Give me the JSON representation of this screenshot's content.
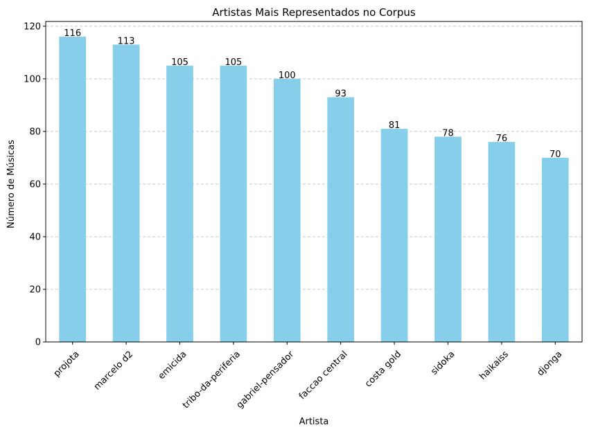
{
  "chart_data": {
    "type": "bar",
    "title": "Artistas Mais Representados no Corpus",
    "xlabel": "Artista",
    "ylabel": "Número de Músicas",
    "categories": [
      "projota",
      "marcelo d2",
      "emicida",
      "tribo-da-periferia",
      "gabriel-pensador",
      "faccao central",
      "costa gold",
      "sidoka",
      "haikaiss",
      "djonga"
    ],
    "values": [
      116,
      113,
      105,
      105,
      100,
      93,
      81,
      78,
      76,
      70
    ],
    "data_labels": [
      "116",
      "113",
      "105",
      "105",
      "100",
      "93",
      "81",
      "78",
      "76",
      "70"
    ],
    "ylim": [
      0,
      121.8
    ],
    "yticks": [
      0,
      20,
      40,
      60,
      80,
      100,
      120
    ],
    "ytick_labels": [
      "0",
      "20",
      "40",
      "60",
      "80",
      "100",
      "120"
    ],
    "grid": "y-dashed",
    "bar_color": "#87ceeb"
  }
}
